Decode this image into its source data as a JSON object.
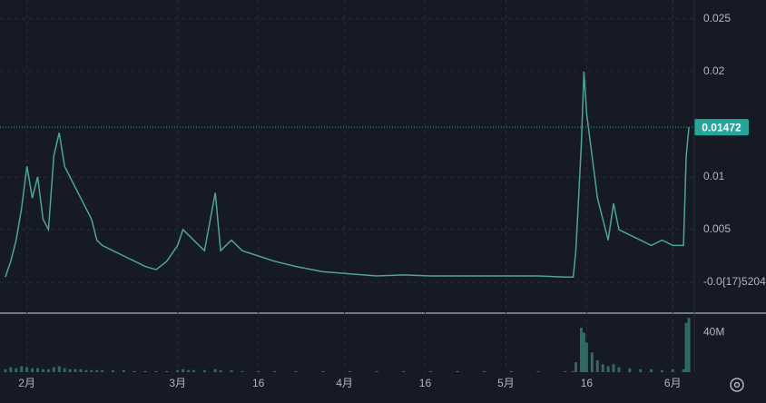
{
  "chart_data": [
    {
      "type": "line",
      "color": "#4fa39a",
      "x": [
        -4,
        -3,
        -2,
        -1,
        0,
        1,
        2,
        3,
        4,
        5,
        6,
        7,
        8,
        9,
        10,
        11,
        12,
        13,
        14,
        16,
        18,
        20,
        22,
        24,
        26,
        28,
        29,
        30,
        31,
        33,
        35,
        36,
        38,
        40,
        43,
        46,
        50,
        55,
        60,
        65,
        70,
        75,
        80,
        85,
        90,
        95,
        100,
        101.5,
        102,
        103,
        103.5,
        104,
        105,
        106,
        107,
        108,
        109,
        110,
        112,
        114,
        116,
        118,
        120,
        122,
        122.5,
        123
      ],
      "values": [
        0.0005,
        0.002,
        0.004,
        0.007,
        0.011,
        0.008,
        0.01,
        0.006,
        0.005,
        0.012,
        0.0142,
        0.011,
        0.01,
        0.009,
        0.008,
        0.007,
        0.006,
        0.004,
        0.0035,
        0.003,
        0.0025,
        0.002,
        0.0015,
        0.0012,
        0.002,
        0.0035,
        0.005,
        0.0045,
        0.004,
        0.003,
        0.0085,
        0.003,
        0.004,
        0.003,
        0.0025,
        0.002,
        0.0015,
        0.001,
        0.0008,
        0.0006,
        0.0007,
        0.0006,
        0.0006,
        0.0006,
        0.0006,
        0.0006,
        0.0005,
        0.0005,
        0.003,
        0.013,
        0.02,
        0.016,
        0.012,
        0.008,
        0.006,
        0.004,
        0.0075,
        0.005,
        0.0045,
        0.004,
        0.0035,
        0.004,
        0.0035,
        0.0035,
        0.012,
        0.01472
      ],
      "last_value": 0.01472,
      "xlim": [
        -5,
        124
      ],
      "xticks": [
        {
          "value": 0,
          "label": "2月"
        },
        {
          "value": 28,
          "label": "3月"
        },
        {
          "value": 43,
          "label": "16"
        },
        {
          "value": 59,
          "label": "4月"
        },
        {
          "value": 74,
          "label": "16"
        },
        {
          "value": 89,
          "label": "5月"
        },
        {
          "value": 104,
          "label": "16"
        },
        {
          "value": 120,
          "label": "6月"
        }
      ],
      "ylim": [
        -0.0025,
        0.0268
      ],
      "yticks": [
        {
          "value": 0,
          "label": "-0.0{17}5204"
        },
        0.005,
        0.01,
        0.02,
        0.025
      ],
      "grid": true
    },
    {
      "type": "bar",
      "color": "#2f6b64",
      "x": [
        -4,
        -3,
        -2,
        -1,
        0,
        1,
        2,
        3,
        4,
        5,
        6,
        7,
        8,
        9,
        10,
        11,
        12,
        13,
        14,
        16,
        18,
        20,
        22,
        24,
        26,
        28,
        29,
        30,
        31,
        33,
        35,
        36,
        38,
        40,
        43,
        46,
        50,
        55,
        60,
        65,
        70,
        75,
        80,
        85,
        90,
        95,
        100,
        101.5,
        102,
        103,
        103.5,
        104,
        105,
        106,
        107,
        108,
        109,
        110,
        112,
        114,
        116,
        118,
        120,
        122,
        122.5,
        123
      ],
      "values": [
        3000000,
        5000000,
        4000000,
        6000000,
        5000000,
        4000000,
        4000000,
        3000000,
        3000000,
        5000000,
        6000000,
        4000000,
        3000000,
        3000000,
        3000000,
        2000000,
        2000000,
        2000000,
        2000000,
        2000000,
        2000000,
        1000000,
        1000000,
        1000000,
        1000000,
        2000000,
        3000000,
        2000000,
        2000000,
        2000000,
        3000000,
        2000000,
        2000000,
        1000000,
        1000000,
        1000000,
        1000000,
        1000000,
        1000000,
        1000000,
        1000000,
        1000000,
        1000000,
        1000000,
        1000000,
        1000000,
        1000000,
        1000000,
        10000000,
        45000000,
        40000000,
        30000000,
        20000000,
        12000000,
        8000000,
        6000000,
        8000000,
        5000000,
        4000000,
        3000000,
        3000000,
        2000000,
        3000000,
        3000000,
        50000000,
        55000000
      ],
      "ylim": [
        0,
        58000000
      ],
      "yticks": [
        {
          "value": 40000000,
          "label": "40M"
        }
      ]
    }
  ]
}
